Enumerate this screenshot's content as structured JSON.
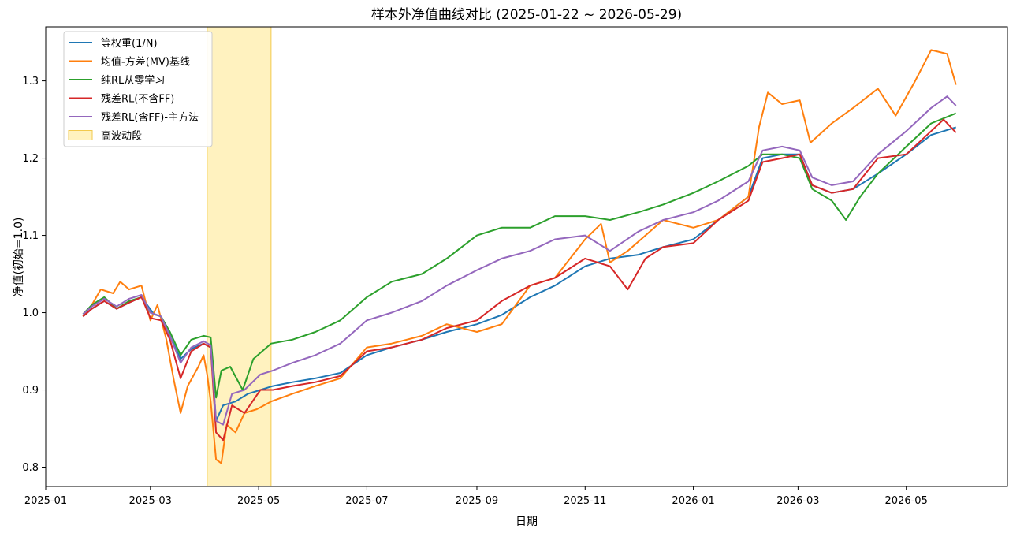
{
  "chart_data": {
    "type": "line",
    "title": "样本外净值曲线对比 (2025-01-22 ~ 2026-05-29)",
    "xlabel": "日期",
    "ylabel": "净值(初始=1.0)",
    "xlim": [
      "2025-01-01",
      "2026-06-27"
    ],
    "ylim": [
      0.775,
      1.37
    ],
    "x_ticks": [
      "2025-01",
      "2025-03",
      "2025-05",
      "2025-07",
      "2025-09",
      "2025-11",
      "2026-01",
      "2026-03",
      "2026-05"
    ],
    "y_ticks": [
      0.8,
      0.9,
      1.0,
      1.1,
      1.2,
      1.3
    ],
    "y_tick_labels": [
      "0.8",
      "0.9",
      "1.0",
      "1.1",
      "1.2",
      "1.3"
    ],
    "grid": false,
    "legend_position": "top-left",
    "shaded_region": {
      "label": "高波动段",
      "x_start": "2025-04-02",
      "x_end": "2025-05-08",
      "color": "#ffe680"
    },
    "series": [
      {
        "name": "等权重(1/N)",
        "color": "#1f77b4",
        "points": [
          [
            "2025-01-22",
            0.995
          ],
          [
            "2025-01-27",
            1.005
          ],
          [
            "2025-02-03",
            1.015
          ],
          [
            "2025-02-10",
            1.005
          ],
          [
            "2025-02-17",
            1.013
          ],
          [
            "2025-02-24",
            1.02
          ],
          [
            "2025-03-03",
            0.998
          ],
          [
            "2025-03-07",
            0.995
          ],
          [
            "2025-03-12",
            0.97
          ],
          [
            "2025-03-18",
            0.94
          ],
          [
            "2025-03-24",
            0.953
          ],
          [
            "2025-03-31",
            0.96
          ],
          [
            "2025-04-04",
            0.955
          ],
          [
            "2025-04-07",
            0.86
          ],
          [
            "2025-04-11",
            0.88
          ],
          [
            "2025-04-18",
            0.885
          ],
          [
            "2025-04-25",
            0.895
          ],
          [
            "2025-05-02",
            0.9
          ],
          [
            "2025-05-09",
            0.905
          ],
          [
            "2025-05-20",
            0.91
          ],
          [
            "2025-06-02",
            0.915
          ],
          [
            "2025-06-16",
            0.922
          ],
          [
            "2025-07-01",
            0.945
          ],
          [
            "2025-07-15",
            0.955
          ],
          [
            "2025-08-01",
            0.965
          ],
          [
            "2025-08-15",
            0.975
          ],
          [
            "2025-09-01",
            0.985
          ],
          [
            "2025-09-15",
            0.997
          ],
          [
            "2025-10-01",
            1.02
          ],
          [
            "2025-10-15",
            1.035
          ],
          [
            "2025-11-01",
            1.06
          ],
          [
            "2025-11-15",
            1.07
          ],
          [
            "2025-12-01",
            1.075
          ],
          [
            "2025-12-15",
            1.085
          ],
          [
            "2026-01-01",
            1.095
          ],
          [
            "2026-01-15",
            1.12
          ],
          [
            "2026-02-01",
            1.15
          ],
          [
            "2026-02-09",
            1.2
          ],
          [
            "2026-02-20",
            1.205
          ],
          [
            "2026-03-02",
            1.205
          ],
          [
            "2026-03-09",
            1.165
          ],
          [
            "2026-03-20",
            1.155
          ],
          [
            "2026-04-01",
            1.16
          ],
          [
            "2026-04-15",
            1.18
          ],
          [
            "2026-05-01",
            1.205
          ],
          [
            "2026-05-15",
            1.23
          ],
          [
            "2026-05-29",
            1.24
          ]
        ]
      },
      {
        "name": "均值-方差(MV)基线",
        "color": "#ff7f0e",
        "points": [
          [
            "2025-01-22",
            0.995
          ],
          [
            "2025-01-27",
            1.01
          ],
          [
            "2025-02-01",
            1.03
          ],
          [
            "2025-02-08",
            1.025
          ],
          [
            "2025-02-12",
            1.04
          ],
          [
            "2025-02-17",
            1.03
          ],
          [
            "2025-02-24",
            1.035
          ],
          [
            "2025-03-01",
            0.99
          ],
          [
            "2025-03-05",
            1.01
          ],
          [
            "2025-03-10",
            0.965
          ],
          [
            "2025-03-14",
            0.915
          ],
          [
            "2025-03-18",
            0.87
          ],
          [
            "2025-03-22",
            0.905
          ],
          [
            "2025-03-28",
            0.93
          ],
          [
            "2025-03-31",
            0.945
          ],
          [
            "2025-04-02",
            0.92
          ],
          [
            "2025-04-04",
            0.885
          ],
          [
            "2025-04-07",
            0.81
          ],
          [
            "2025-04-10",
            0.805
          ],
          [
            "2025-04-13",
            0.855
          ],
          [
            "2025-04-18",
            0.845
          ],
          [
            "2025-04-23",
            0.87
          ],
          [
            "2025-04-30",
            0.875
          ],
          [
            "2025-05-08",
            0.885
          ],
          [
            "2025-05-20",
            0.895
          ],
          [
            "2025-06-02",
            0.905
          ],
          [
            "2025-06-16",
            0.915
          ],
          [
            "2025-07-01",
            0.955
          ],
          [
            "2025-07-15",
            0.96
          ],
          [
            "2025-08-01",
            0.97
          ],
          [
            "2025-08-15",
            0.985
          ],
          [
            "2025-09-01",
            0.975
          ],
          [
            "2025-09-15",
            0.985
          ],
          [
            "2025-10-01",
            1.035
          ],
          [
            "2025-10-15",
            1.045
          ],
          [
            "2025-11-01",
            1.095
          ],
          [
            "2025-11-10",
            1.115
          ],
          [
            "2025-11-15",
            1.065
          ],
          [
            "2025-11-25",
            1.08
          ],
          [
            "2025-12-05",
            1.1
          ],
          [
            "2025-12-15",
            1.12
          ],
          [
            "2026-01-01",
            1.11
          ],
          [
            "2026-01-15",
            1.12
          ],
          [
            "2026-02-01",
            1.15
          ],
          [
            "2026-02-07",
            1.24
          ],
          [
            "2026-02-12",
            1.285
          ],
          [
            "2026-02-20",
            1.27
          ],
          [
            "2026-03-02",
            1.275
          ],
          [
            "2026-03-08",
            1.22
          ],
          [
            "2026-03-20",
            1.245
          ],
          [
            "2026-04-01",
            1.265
          ],
          [
            "2026-04-15",
            1.29
          ],
          [
            "2026-04-25",
            1.255
          ],
          [
            "2026-05-06",
            1.3
          ],
          [
            "2026-05-15",
            1.34
          ],
          [
            "2026-05-24",
            1.335
          ],
          [
            "2026-05-29",
            1.295
          ]
        ]
      },
      {
        "name": "纯RL从零学习",
        "color": "#2ca02c",
        "points": [
          [
            "2025-01-22",
            0.998
          ],
          [
            "2025-01-27",
            1.01
          ],
          [
            "2025-02-03",
            1.02
          ],
          [
            "2025-02-10",
            1.005
          ],
          [
            "2025-02-17",
            1.015
          ],
          [
            "2025-02-24",
            1.02
          ],
          [
            "2025-03-01",
            1.0
          ],
          [
            "2025-03-07",
            0.995
          ],
          [
            "2025-03-12",
            0.975
          ],
          [
            "2025-03-18",
            0.945
          ],
          [
            "2025-03-24",
            0.965
          ],
          [
            "2025-03-31",
            0.97
          ],
          [
            "2025-04-04",
            0.968
          ],
          [
            "2025-04-07",
            0.89
          ],
          [
            "2025-04-10",
            0.925
          ],
          [
            "2025-04-15",
            0.93
          ],
          [
            "2025-04-22",
            0.9
          ],
          [
            "2025-04-28",
            0.94
          ],
          [
            "2025-05-08",
            0.96
          ],
          [
            "2025-05-20",
            0.965
          ],
          [
            "2025-06-02",
            0.975
          ],
          [
            "2025-06-16",
            0.99
          ],
          [
            "2025-07-01",
            1.02
          ],
          [
            "2025-07-15",
            1.04
          ],
          [
            "2025-08-01",
            1.05
          ],
          [
            "2025-08-15",
            1.07
          ],
          [
            "2025-09-01",
            1.1
          ],
          [
            "2025-09-15",
            1.11
          ],
          [
            "2025-10-01",
            1.11
          ],
          [
            "2025-10-15",
            1.125
          ],
          [
            "2025-11-01",
            1.125
          ],
          [
            "2025-11-15",
            1.12
          ],
          [
            "2025-12-01",
            1.13
          ],
          [
            "2025-12-15",
            1.14
          ],
          [
            "2026-01-01",
            1.155
          ],
          [
            "2026-01-15",
            1.17
          ],
          [
            "2026-02-01",
            1.19
          ],
          [
            "2026-02-09",
            1.205
          ],
          [
            "2026-02-20",
            1.205
          ],
          [
            "2026-03-02",
            1.2
          ],
          [
            "2026-03-09",
            1.16
          ],
          [
            "2026-03-20",
            1.145
          ],
          [
            "2026-03-28",
            1.12
          ],
          [
            "2026-04-05",
            1.15
          ],
          [
            "2026-04-15",
            1.18
          ],
          [
            "2026-05-01",
            1.215
          ],
          [
            "2026-05-15",
            1.245
          ],
          [
            "2026-05-29",
            1.258
          ]
        ]
      },
      {
        "name": "残差RL(不含FF)",
        "color": "#d62728",
        "points": [
          [
            "2025-01-22",
            0.995
          ],
          [
            "2025-01-27",
            1.005
          ],
          [
            "2025-02-03",
            1.015
          ],
          [
            "2025-02-10",
            1.005
          ],
          [
            "2025-02-17",
            1.013
          ],
          [
            "2025-02-24",
            1.02
          ],
          [
            "2025-03-01",
            0.993
          ],
          [
            "2025-03-07",
            0.99
          ],
          [
            "2025-03-12",
            0.965
          ],
          [
            "2025-03-18",
            0.915
          ],
          [
            "2025-03-24",
            0.95
          ],
          [
            "2025-03-31",
            0.96
          ],
          [
            "2025-04-04",
            0.955
          ],
          [
            "2025-04-07",
            0.845
          ],
          [
            "2025-04-11",
            0.835
          ],
          [
            "2025-04-16",
            0.88
          ],
          [
            "2025-04-23",
            0.87
          ],
          [
            "2025-05-02",
            0.9
          ],
          [
            "2025-05-09",
            0.9
          ],
          [
            "2025-05-20",
            0.905
          ],
          [
            "2025-06-02",
            0.91
          ],
          [
            "2025-06-16",
            0.918
          ],
          [
            "2025-07-01",
            0.95
          ],
          [
            "2025-07-15",
            0.955
          ],
          [
            "2025-08-01",
            0.965
          ],
          [
            "2025-08-15",
            0.98
          ],
          [
            "2025-09-01",
            0.99
          ],
          [
            "2025-09-15",
            1.015
          ],
          [
            "2025-10-01",
            1.035
          ],
          [
            "2025-10-15",
            1.045
          ],
          [
            "2025-11-01",
            1.07
          ],
          [
            "2025-11-15",
            1.06
          ],
          [
            "2025-11-25",
            1.03
          ],
          [
            "2025-12-05",
            1.07
          ],
          [
            "2025-12-15",
            1.085
          ],
          [
            "2026-01-01",
            1.09
          ],
          [
            "2026-01-15",
            1.12
          ],
          [
            "2026-02-01",
            1.145
          ],
          [
            "2026-02-09",
            1.195
          ],
          [
            "2026-02-20",
            1.2
          ],
          [
            "2026-03-02",
            1.205
          ],
          [
            "2026-03-09",
            1.165
          ],
          [
            "2026-03-20",
            1.155
          ],
          [
            "2026-04-01",
            1.16
          ],
          [
            "2026-04-15",
            1.2
          ],
          [
            "2026-05-01",
            1.205
          ],
          [
            "2026-05-15",
            1.235
          ],
          [
            "2026-05-22",
            1.25
          ],
          [
            "2026-05-29",
            1.233
          ]
        ]
      },
      {
        "name": "残差RL(含FF)-主方法",
        "color": "#9467bd",
        "points": [
          [
            "2025-01-22",
            0.998
          ],
          [
            "2025-01-27",
            1.008
          ],
          [
            "2025-02-03",
            1.018
          ],
          [
            "2025-02-10",
            1.008
          ],
          [
            "2025-02-17",
            1.018
          ],
          [
            "2025-02-24",
            1.023
          ],
          [
            "2025-03-01",
            1.0
          ],
          [
            "2025-03-07",
            0.995
          ],
          [
            "2025-03-12",
            0.97
          ],
          [
            "2025-03-18",
            0.935
          ],
          [
            "2025-03-24",
            0.955
          ],
          [
            "2025-03-31",
            0.963
          ],
          [
            "2025-04-04",
            0.958
          ],
          [
            "2025-04-07",
            0.86
          ],
          [
            "2025-04-11",
            0.855
          ],
          [
            "2025-04-16",
            0.895
          ],
          [
            "2025-04-23",
            0.9
          ],
          [
            "2025-05-02",
            0.92
          ],
          [
            "2025-05-09",
            0.925
          ],
          [
            "2025-05-20",
            0.935
          ],
          [
            "2025-06-02",
            0.945
          ],
          [
            "2025-06-16",
            0.96
          ],
          [
            "2025-07-01",
            0.99
          ],
          [
            "2025-07-15",
            1.0
          ],
          [
            "2025-08-01",
            1.015
          ],
          [
            "2025-08-15",
            1.035
          ],
          [
            "2025-09-01",
            1.055
          ],
          [
            "2025-09-15",
            1.07
          ],
          [
            "2025-10-01",
            1.08
          ],
          [
            "2025-10-15",
            1.095
          ],
          [
            "2025-11-01",
            1.1
          ],
          [
            "2025-11-15",
            1.08
          ],
          [
            "2025-12-01",
            1.105
          ],
          [
            "2025-12-15",
            1.12
          ],
          [
            "2026-01-01",
            1.13
          ],
          [
            "2026-01-15",
            1.145
          ],
          [
            "2026-02-01",
            1.17
          ],
          [
            "2026-02-09",
            1.21
          ],
          [
            "2026-02-20",
            1.215
          ],
          [
            "2026-03-02",
            1.21
          ],
          [
            "2026-03-09",
            1.175
          ],
          [
            "2026-03-20",
            1.165
          ],
          [
            "2026-04-01",
            1.17
          ],
          [
            "2026-04-15",
            1.205
          ],
          [
            "2026-05-01",
            1.235
          ],
          [
            "2026-05-15",
            1.265
          ],
          [
            "2026-05-24",
            1.28
          ],
          [
            "2026-05-29",
            1.268
          ]
        ]
      }
    ]
  }
}
